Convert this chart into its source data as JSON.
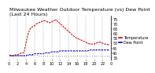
{
  "title": "Milwaukee Weather Outdoor Temperature (vs) Dew Point (Last 24 Hours)",
  "background_color": "#ffffff",
  "grid_color": "#888888",
  "ylim": [
    33,
    78
  ],
  "yticks": [
    35,
    40,
    45,
    50,
    55,
    60,
    65,
    70,
    75
  ],
  "hours": [
    0,
    0.5,
    1,
    1.5,
    2,
    2.5,
    3,
    3.5,
    4,
    4.5,
    5,
    5.5,
    6,
    6.5,
    7,
    7.5,
    8,
    8.5,
    9,
    9.5,
    10,
    10.5,
    11,
    11.5,
    12,
    12.5,
    13,
    13.5,
    14,
    14.5,
    15,
    15.5,
    16,
    16.5,
    17,
    17.5,
    18,
    18.5,
    19,
    19.5,
    20,
    20.5,
    21,
    21.5,
    22,
    22.5,
    23,
    23.5
  ],
  "temp": [
    38,
    37,
    37,
    38,
    38,
    39,
    40,
    40,
    51,
    60,
    65,
    67,
    68,
    70,
    71,
    72,
    73,
    73,
    72,
    71,
    72,
    73,
    74,
    72,
    70,
    68,
    66,
    64,
    62,
    60,
    58,
    56,
    55,
    54,
    53,
    52,
    51,
    50,
    49,
    49,
    49,
    50,
    51,
    51,
    50,
    49,
    49,
    48
  ],
  "dew": [
    37,
    37,
    37,
    37,
    37,
    37,
    37,
    37,
    37,
    38,
    38,
    38,
    39,
    39,
    39,
    39,
    39,
    40,
    40,
    40,
    41,
    41,
    41,
    41,
    42,
    42,
    42,
    42,
    42,
    42,
    42,
    42,
    42,
    42,
    42,
    42,
    42,
    42,
    43,
    43,
    43,
    43,
    43,
    43,
    43,
    43,
    43,
    43
  ],
  "outside": [
    38,
    38,
    38,
    38,
    38,
    38,
    38,
    38,
    38,
    38,
    38,
    38,
    38,
    38,
    37,
    37,
    37,
    37,
    37,
    37,
    37,
    37,
    37,
    37,
    37,
    37,
    37,
    37,
    37,
    37,
    37,
    37,
    37,
    37,
    37,
    37,
    37,
    37,
    37,
    37,
    37,
    37,
    37,
    37,
    37,
    37,
    37,
    37
  ],
  "temp_color": "#cc0000",
  "dew_color": "#0000cc",
  "outside_color": "#000000",
  "vgrid_x": [
    0,
    2,
    4,
    6,
    8,
    10,
    12,
    14,
    16,
    18,
    20,
    22,
    24
  ],
  "xtick_labels": [
    "0",
    "2",
    "4",
    "6",
    "8",
    "10",
    "12",
    "14",
    "16",
    "18",
    "20",
    "22",
    "0"
  ],
  "title_fontsize": 4.5,
  "tick_fontsize": 3.5,
  "legend_fontsize": 3.5,
  "legend_temp": "Temperature",
  "legend_dew": "Dew Point"
}
